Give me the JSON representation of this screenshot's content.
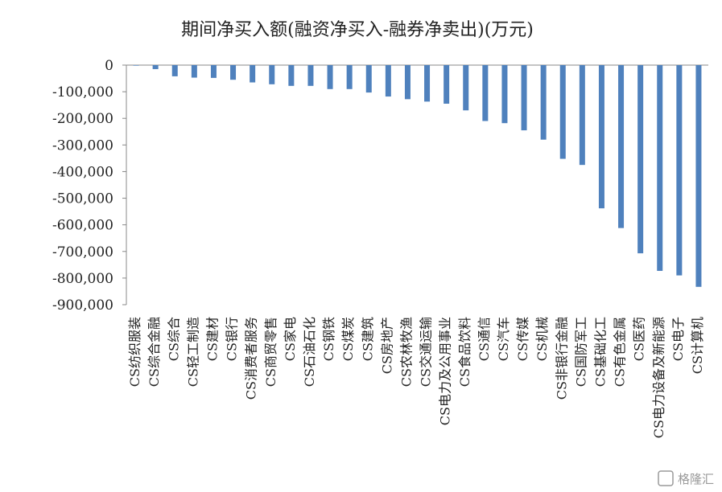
{
  "chart_data": {
    "type": "bar",
    "title": "期间净买入额(融资净买入-融券净卖出)(万元)",
    "ylim": [
      -900000,
      0
    ],
    "yticks": [
      0,
      -100000,
      -200000,
      -300000,
      -400000,
      -500000,
      -600000,
      -700000,
      -800000,
      -900000
    ],
    "ytick_labels": [
      "0",
      "-100,000",
      "-200,000",
      "-300,000",
      "-400,000",
      "-500,000",
      "-600,000",
      "-700,000",
      "-800,000",
      "-900,000"
    ],
    "grid": false,
    "legend": "none",
    "bar_color": "#4F81BD",
    "categories": [
      "CS纺织服装",
      "CS综合金融",
      "CS综合",
      "CS轻工制造",
      "CS建材",
      "CS银行",
      "CS消费者服务",
      "CS商贸零售",
      "CS家电",
      "CS石油石化",
      "CS钢铁",
      "CS煤炭",
      "CS建筑",
      "CS房地产",
      "CS农林牧渔",
      "CS交通运输",
      "CS电力及公用事业",
      "CS食品饮料",
      "CS通信",
      "CS汽车",
      "CS传媒",
      "CS机械",
      "CS非银行金融",
      "CS国防军工",
      "CS基础化工",
      "CS有色金属",
      "CS医药",
      "CS电力设备及新能源",
      "CS电子",
      "CS计算机"
    ],
    "values": [
      -2000,
      -15000,
      -42000,
      -47000,
      -48000,
      -55000,
      -65000,
      -72000,
      -78000,
      -78000,
      -90000,
      -90000,
      -103000,
      -118000,
      -128000,
      -137000,
      -145000,
      -170000,
      -210000,
      -218000,
      -245000,
      -280000,
      -352000,
      -375000,
      -538000,
      -612000,
      -707000,
      -773000,
      -790000,
      -833000
    ]
  },
  "watermark": {
    "text": "格隆汇"
  }
}
